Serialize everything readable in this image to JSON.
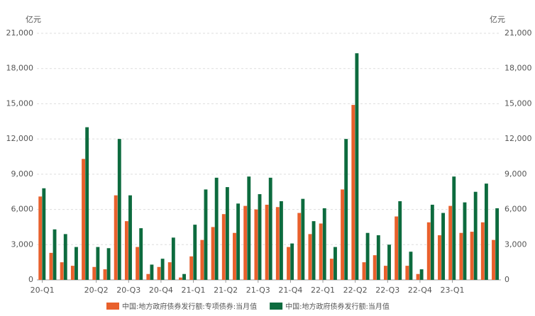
{
  "chart_data": {
    "type": "bar",
    "categories": [
      "20-Q1",
      null,
      null,
      null,
      null,
      "20-Q2",
      null,
      null,
      "20-Q3",
      null,
      null,
      "20-Q4",
      null,
      null,
      "21-Q1",
      null,
      null,
      "21-Q2",
      null,
      null,
      "21-Q3",
      null,
      null,
      "21-Q4",
      null,
      null,
      "22-Q1",
      null,
      null,
      "22-Q2",
      null,
      null,
      "22-Q3",
      null,
      null,
      "22-Q4",
      null,
      null,
      "23-Q1",
      null,
      null,
      null,
      null
    ],
    "series": [
      {
        "name": "中国:地方政府债券发行额:专项债券:当月值",
        "color": "#e8602c",
        "values": [
          7100,
          2300,
          1500,
          1200,
          10300,
          1100,
          900,
          7200,
          5000,
          2800,
          500,
          1100,
          1500,
          200,
          2000,
          3400,
          4500,
          5600,
          4000,
          6300,
          6000,
          6400,
          6200,
          2800,
          5700,
          3900,
          4800,
          1800,
          7700,
          14900,
          1500,
          2100,
          1200,
          5400,
          1200,
          500,
          4900,
          3800,
          6300,
          4000,
          4100,
          4900,
          3400
        ]
      },
      {
        "name": "中国:地方政府债券发行额:当月值",
        "color": "#0d6b3e",
        "values": [
          7800,
          4300,
          3900,
          2800,
          13000,
          2800,
          2700,
          12000,
          7200,
          4400,
          1300,
          1800,
          3600,
          500,
          4700,
          7700,
          8700,
          7900,
          6500,
          8800,
          7300,
          8700,
          6700,
          3100,
          6900,
          5000,
          6100,
          2800,
          12000,
          19300,
          4000,
          3800,
          3000,
          6700,
          2400,
          900,
          6400,
          5700,
          8800,
          6600,
          7500,
          8200,
          6100
        ]
      }
    ],
    "y_label": "亿元",
    "y2_label": "亿元",
    "ylim": [
      0,
      21000
    ],
    "yticks": [
      0,
      {
        "value": 3000,
        "label": "3,000"
      },
      {
        "value": 6000,
        "label": "6,000"
      },
      {
        "value": 9000,
        "label": "9,000"
      },
      {
        "value": 12000,
        "label": "12,000"
      },
      {
        "value": 15000,
        "label": "15,000"
      },
      {
        "value": 18000,
        "label": "18,000"
      },
      {
        "value": 21000,
        "label": "21,000"
      }
    ],
    "grid": true
  }
}
